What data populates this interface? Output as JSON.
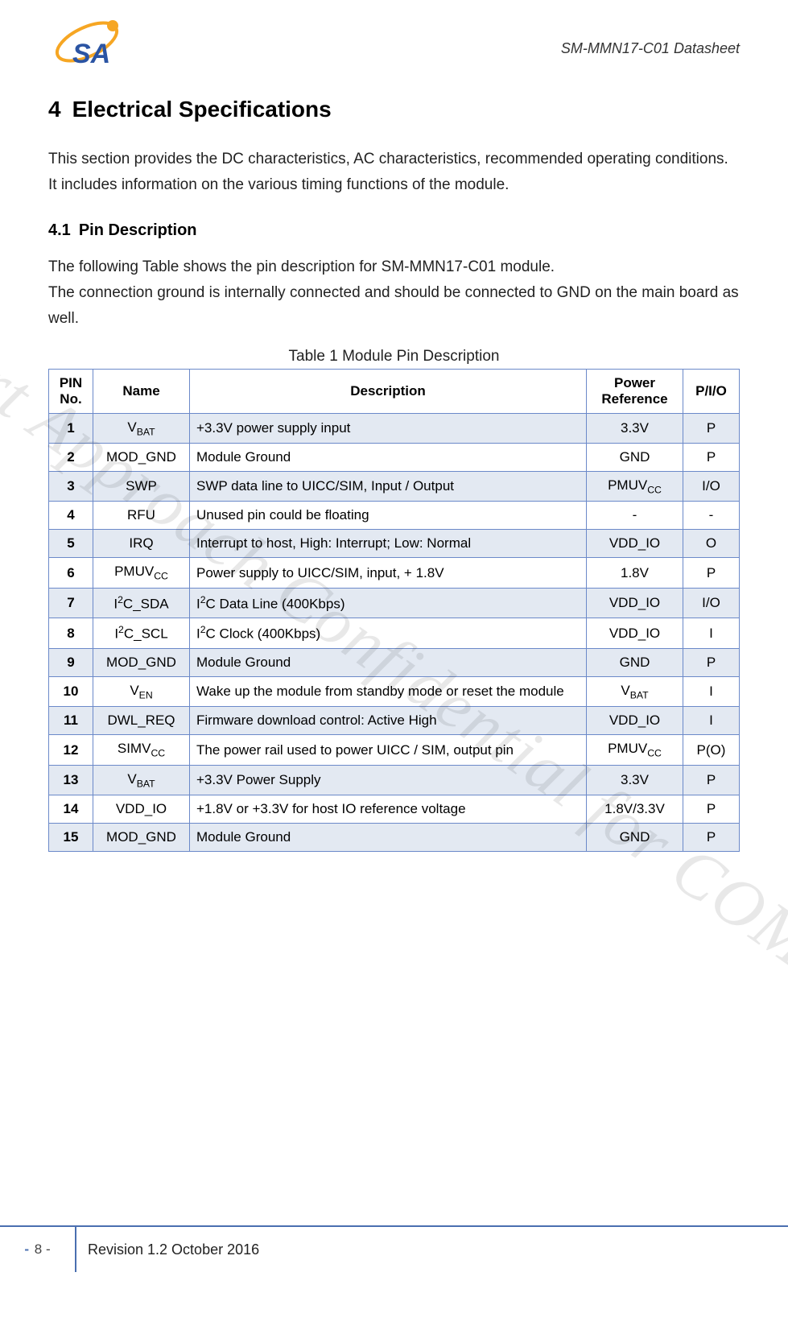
{
  "header": {
    "doc_title": "SM-MMN17-C01 Datasheet"
  },
  "section": {
    "number": "4",
    "title": "Electrical Specifications",
    "intro": "This section provides the DC characteristics, AC characteristics, recommended operating conditions. It includes information on the various timing functions of the module."
  },
  "subsection": {
    "number": "4.1",
    "title": "Pin Description",
    "para1": "The following Table shows the pin description for SM-MMN17-C01 module.",
    "para2": "The connection ground is internally connected and should be connected to GND on the main board as well."
  },
  "table": {
    "caption": "Table 1 Module Pin Description",
    "columns": {
      "pin": "PIN No.",
      "name": "Name",
      "desc": "Description",
      "power": "Power Reference",
      "pio": "P/I/O"
    },
    "border_color": "#6b89c9",
    "shade_color": "#e3e9f2",
    "rows": [
      {
        "no": "1",
        "name_html": "V<sub>BAT</sub>",
        "desc_html": "+3.3V power supply input",
        "power_html": "3.3V",
        "pio": "P",
        "shade": true
      },
      {
        "no": "2",
        "name_html": "MOD_GND",
        "desc_html": "Module Ground",
        "power_html": "GND",
        "pio": "P",
        "shade": false
      },
      {
        "no": "3",
        "name_html": "SWP",
        "desc_html": "SWP data line to UICC/SIM, Input / Output",
        "power_html": "PMUV<sub>CC</sub>",
        "pio": "I/O",
        "shade": true
      },
      {
        "no": "4",
        "name_html": "RFU",
        "desc_html": "Unused pin could be floating",
        "power_html": "-",
        "pio": "-",
        "shade": false
      },
      {
        "no": "5",
        "name_html": "IRQ",
        "desc_html": "Interrupt to host, High: Interrupt; Low: Normal",
        "power_html": "VDD_IO",
        "pio": "O",
        "shade": true
      },
      {
        "no": "6",
        "name_html": "PMUV<sub>CC</sub>",
        "desc_html": "Power supply to UICC/SIM, input, + 1.8V",
        "power_html": "1.8V",
        "pio": "P",
        "shade": false
      },
      {
        "no": "7",
        "name_html": "I<sup>2</sup>C_SDA",
        "desc_html": "I<sup>2</sup>C Data Line (400Kbps)",
        "power_html": "VDD_IO",
        "pio": "I/O",
        "shade": true
      },
      {
        "no": "8",
        "name_html": "I<sup>2</sup>C_SCL",
        "desc_html": "I<sup>2</sup>C Clock (400Kbps)",
        "power_html": "VDD_IO",
        "pio": "I",
        "shade": false
      },
      {
        "no": "9",
        "name_html": "MOD_GND",
        "desc_html": "Module Ground",
        "power_html": "GND",
        "pio": "P",
        "shade": true
      },
      {
        "no": "10",
        "name_html": "V<sub>EN</sub>",
        "desc_html": "Wake up the module from standby mode or reset the module",
        "power_html": "V<sub>BAT</sub>",
        "pio": "I",
        "shade": false
      },
      {
        "no": "11",
        "name_html": "DWL_REQ",
        "desc_html": "Firmware download control: Active High",
        "power_html": "VDD_IO",
        "pio": "I",
        "shade": true
      },
      {
        "no": "12",
        "name_html": "SIMV<sub>CC</sub>",
        "desc_html": "The power rail used to power UICC / SIM, output pin",
        "power_html": "PMUV<sub>CC</sub>",
        "pio": "P(O)",
        "shade": false
      },
      {
        "no": "13",
        "name_html": "V<sub>BAT</sub>",
        "desc_html": "+3.3V Power Supply",
        "power_html": "3.3V",
        "pio": "P",
        "shade": true
      },
      {
        "no": "14",
        "name_html": "VDD_IO",
        "desc_html": "+1.8V or +3.3V for host IO reference voltage",
        "power_html": "1.8V/3.3V",
        "pio": "P",
        "shade": false
      },
      {
        "no": "15",
        "name_html": "MOD_GND",
        "desc_html": "Module Ground",
        "power_html": "GND",
        "pio": "P",
        "shade": true
      }
    ]
  },
  "watermark": "Smart Approach Confidential for COMPAL",
  "footer": {
    "page_prefix": "-",
    "page": "8",
    "page_suffix": "-",
    "revision": "Revision 1.2 October 2016"
  },
  "logo": {
    "orbit_color": "#f6a623",
    "orbit_width": 4,
    "planet_fill": "#f6a623",
    "text_fill": "#2b54a3",
    "text": "SA"
  }
}
